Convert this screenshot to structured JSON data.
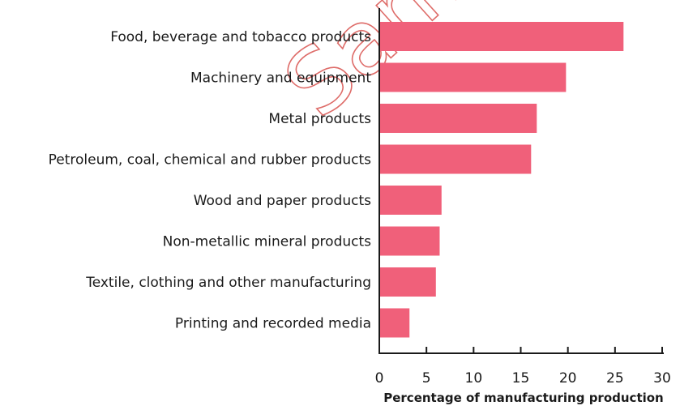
{
  "chart_data": {
    "type": "bar",
    "orientation": "horizontal",
    "categories": [
      "Food, beverage and tobacco products",
      "Machinery and equipment",
      "Metal products",
      "Petroleum, coal, chemical and rubber products",
      "Wood and paper products",
      "Non-metallic mineral products",
      "Textile, clothing and other manufacturing",
      "Printing and recorded media"
    ],
    "values": [
      25.9,
      19.8,
      16.7,
      16.1,
      6.6,
      6.4,
      6.0,
      3.2
    ],
    "title": "",
    "xlabel": "Percentage of manufacturing production",
    "ylabel": "",
    "xlim": [
      0,
      30
    ],
    "xticks": [
      "0",
      "5",
      "10",
      "15",
      "20",
      "25",
      "30"
    ],
    "grid": false,
    "bar_color": "#f0607a",
    "watermark": "Sample"
  }
}
